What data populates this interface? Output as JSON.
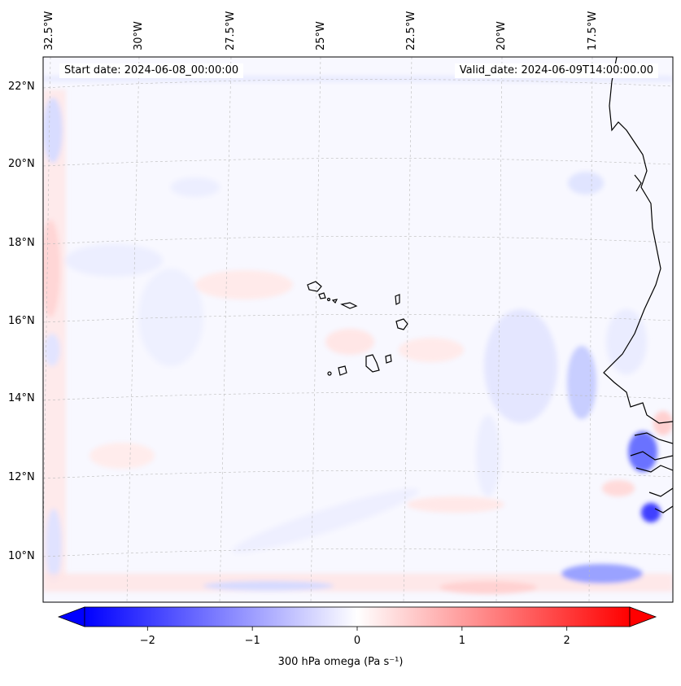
{
  "map": {
    "start_label": "Start date: 2024-06-08_00:00:00",
    "valid_label": "Valid_date: 2024-06-09T14:00:00.00",
    "lon_labels": [
      "32.5°W",
      "30°W",
      "27.5°W",
      "25°W",
      "22.5°W",
      "20°W",
      "17.5°W"
    ],
    "lat_labels": [
      "22°N",
      "20°N",
      "18°N",
      "16°N",
      "14°N",
      "12°N",
      "10°N"
    ],
    "field_variable": "300 hPa omega",
    "projection": "Lambert conformal (curved graticule)",
    "colormap": "bwr",
    "gridlines": true,
    "features": [
      "West African coastline",
      "Cape Verde islands"
    ]
  },
  "colorbar": {
    "label": "300 hPa omega (Pa s⁻¹)",
    "ticks": [
      "−2",
      "−1",
      "0",
      "1",
      "2"
    ],
    "min": -2.6,
    "max": 2.6,
    "extend": "both",
    "colors": {
      "low": "#0000ff",
      "mid": "#ffffff",
      "high": "#ff0000"
    }
  }
}
